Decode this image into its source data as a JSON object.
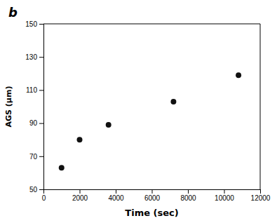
{
  "chart_data": {
    "type": "scatter",
    "x": [
      1000,
      2000,
      3600,
      7200,
      10800
    ],
    "values": [
      63,
      80,
      89,
      103,
      119
    ],
    "xlabel": "Time (sec)",
    "ylabel": "AGS (μm)",
    "xlim": [
      0,
      12000
    ],
    "ylim": [
      50,
      150
    ],
    "xticks": [
      0,
      2000,
      4000,
      6000,
      8000,
      10000,
      12000
    ],
    "yticks": [
      50,
      70,
      90,
      110,
      130,
      150
    ],
    "color": "#111111",
    "marker": "circle",
    "grid": false,
    "annotation": "b"
  }
}
